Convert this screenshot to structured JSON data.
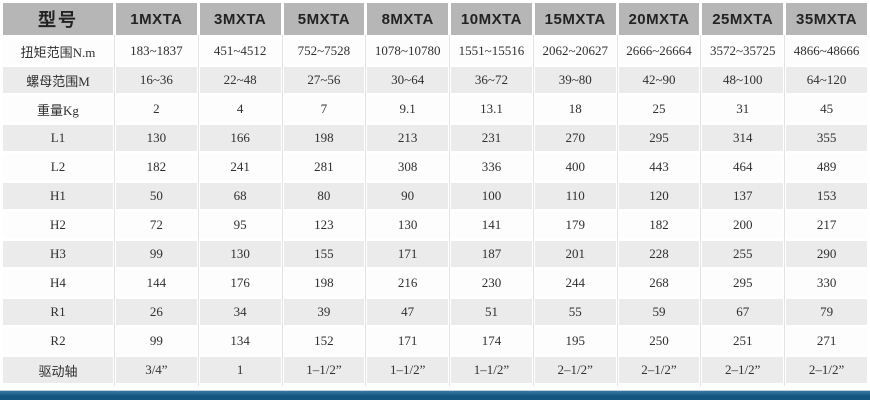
{
  "colors": {
    "header_bg": "#b6b6b6",
    "stripe_bg": "#ebebeb",
    "row_bg": "#fdfdfd",
    "text": "#2f2f2f",
    "header_text": "#222222",
    "accent_light": "#3a78a6",
    "accent_dark": "#14567f"
  },
  "chart_data": {
    "type": "table",
    "title": "",
    "columns": [
      "型号",
      "1MXTA",
      "3MXTA",
      "5MXTA",
      "8MXTA",
      "10MXTA",
      "15MXTA",
      "20MXTA",
      "25MXTA",
      "35MXTA"
    ],
    "rows": [
      [
        "扭矩范围N.m",
        "183~1837",
        "451~4512",
        "752~7528",
        "1078~10780",
        "1551~15516",
        "2062~20627",
        "2666~26664",
        "3572~35725",
        "4866~48666"
      ],
      [
        "螺母范围M",
        "16~36",
        "22~48",
        "27~56",
        "30~64",
        "36~72",
        "39~80",
        "42~90",
        "48~100",
        "64~120"
      ],
      [
        "重量Kg",
        "2",
        "4",
        "7",
        "9.1",
        "13.1",
        "18",
        "25",
        "31",
        "45"
      ],
      [
        "L1",
        "130",
        "166",
        "198",
        "213",
        "231",
        "270",
        "295",
        "314",
        "355"
      ],
      [
        "L2",
        "182",
        "241",
        "281",
        "308",
        "336",
        "400",
        "443",
        "464",
        "489"
      ],
      [
        "H1",
        "50",
        "68",
        "80",
        "90",
        "100",
        "110",
        "120",
        "137",
        "153"
      ],
      [
        "H2",
        "72",
        "95",
        "123",
        "130",
        "141",
        "179",
        "182",
        "200",
        "217"
      ],
      [
        "H3",
        "99",
        "130",
        "155",
        "171",
        "187",
        "201",
        "228",
        "255",
        "290"
      ],
      [
        "H4",
        "144",
        "176",
        "198",
        "216",
        "230",
        "244",
        "268",
        "295",
        "330"
      ],
      [
        "R1",
        "26",
        "34",
        "39",
        "47",
        "51",
        "55",
        "59",
        "67",
        "79"
      ],
      [
        "R2",
        "99",
        "134",
        "152",
        "171",
        "174",
        "195",
        "250",
        "251",
        "271"
      ],
      [
        "驱动轴",
        "3/4”",
        "1",
        "1–1/2”",
        "1–1/2”",
        "1–1/2”",
        "2–1/2”",
        "2–1/2”",
        "2–1/2”",
        "2–1/2”"
      ]
    ]
  }
}
